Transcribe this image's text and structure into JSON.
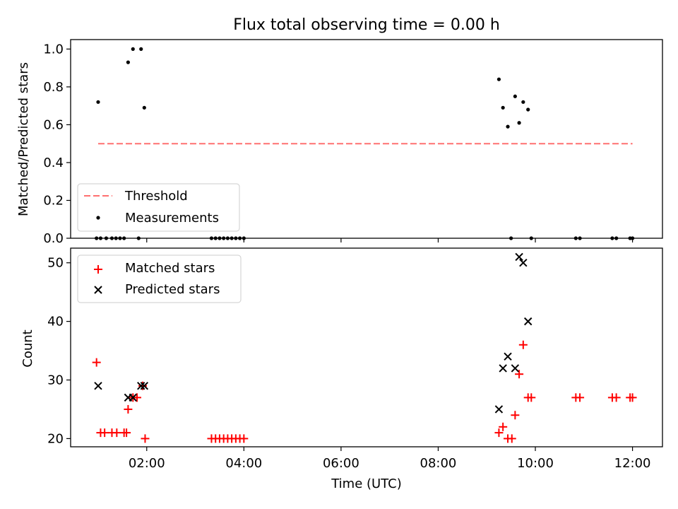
{
  "chart_data": [
    {
      "type": "scatter",
      "title": "Flux total observing time = 0.00 h",
      "xlabel": "",
      "ylabel": "Matched/Predicted stars",
      "xlim": [
        "00:26",
        "12:37"
      ],
      "ylim": [
        0.0,
        1.05
      ],
      "yticks": [
        "0.0",
        "0.2",
        "0.4",
        "0.6",
        "0.8",
        "1.0"
      ],
      "x_tick_labels_visible": false,
      "legend_position": "lower-left",
      "series": [
        {
          "name": "Threshold",
          "kind": "dashed-line",
          "color": "#ff7070",
          "points": [
            [
              "01:00",
              0.5
            ],
            [
              "12:00",
              0.5
            ]
          ]
        },
        {
          "name": "Measurements",
          "kind": "dot",
          "color": "#000000",
          "points": [
            [
              "01:00",
              0.72
            ],
            [
              "01:37",
              0.93
            ],
            [
              "01:43",
              1.0
            ],
            [
              "01:53",
              1.0
            ],
            [
              "01:57",
              0.69
            ],
            [
              "09:15",
              0.84
            ],
            [
              "09:20",
              0.69
            ],
            [
              "09:26",
              0.59
            ],
            [
              "09:35",
              0.75
            ],
            [
              "09:40",
              0.61
            ],
            [
              "09:45",
              0.72
            ],
            [
              "09:51",
              0.68
            ],
            [
              "00:58",
              0.0
            ],
            [
              "01:03",
              0.0
            ],
            [
              "01:10",
              0.0
            ],
            [
              "01:17",
              0.0
            ],
            [
              "01:22",
              0.0
            ],
            [
              "01:27",
              0.0
            ],
            [
              "01:32",
              0.0
            ],
            [
              "01:50",
              0.0
            ],
            [
              "03:20",
              0.0
            ],
            [
              "03:25",
              0.0
            ],
            [
              "03:30",
              0.0
            ],
            [
              "03:35",
              0.0
            ],
            [
              "03:40",
              0.0
            ],
            [
              "03:45",
              0.0
            ],
            [
              "03:50",
              0.0
            ],
            [
              "03:55",
              0.0
            ],
            [
              "04:00",
              0.0
            ],
            [
              "09:30",
              0.0
            ],
            [
              "09:55",
              0.0
            ],
            [
              "10:50",
              0.0
            ],
            [
              "10:55",
              0.0
            ],
            [
              "11:35",
              0.0
            ],
            [
              "11:40",
              0.0
            ],
            [
              "11:57",
              0.0
            ],
            [
              "12:00",
              0.0
            ]
          ]
        }
      ]
    },
    {
      "type": "scatter",
      "title": "",
      "xlabel": "Time (UTC)",
      "ylabel": "Count",
      "xlim": [
        "00:26",
        "12:37"
      ],
      "ylim": [
        18.6,
        52.5
      ],
      "yticks": [
        "20",
        "30",
        "40",
        "50"
      ],
      "xticks": [
        "02:00",
        "04:00",
        "06:00",
        "08:00",
        "10:00",
        "12:00"
      ],
      "legend_position": "upper-left",
      "series": [
        {
          "name": "Matched stars",
          "kind": "plus",
          "color": "#ff0000",
          "points": [
            [
              "00:58",
              33
            ],
            [
              "01:03",
              21
            ],
            [
              "01:08",
              21
            ],
            [
              "01:17",
              21
            ],
            [
              "01:23",
              21
            ],
            [
              "01:32",
              21
            ],
            [
              "01:35",
              21
            ],
            [
              "01:37",
              25
            ],
            [
              "01:43",
              27
            ],
            [
              "01:48",
              27
            ],
            [
              "01:55",
              29
            ],
            [
              "01:58",
              20
            ],
            [
              "03:20",
              20
            ],
            [
              "03:25",
              20
            ],
            [
              "03:30",
              20
            ],
            [
              "03:35",
              20
            ],
            [
              "03:40",
              20
            ],
            [
              "03:45",
              20
            ],
            [
              "03:50",
              20
            ],
            [
              "03:55",
              20
            ],
            [
              "04:00",
              20
            ],
            [
              "09:15",
              21
            ],
            [
              "09:20",
              22
            ],
            [
              "09:26",
              20
            ],
            [
              "09:31",
              20
            ],
            [
              "09:35",
              24
            ],
            [
              "09:40",
              31
            ],
            [
              "09:45",
              36
            ],
            [
              "09:51",
              27
            ],
            [
              "09:55",
              27
            ],
            [
              "10:50",
              27
            ],
            [
              "10:55",
              27
            ],
            [
              "11:35",
              27
            ],
            [
              "11:40",
              27
            ],
            [
              "11:57",
              27
            ],
            [
              "12:00",
              27
            ]
          ]
        },
        {
          "name": "Predicted stars",
          "kind": "x",
          "color": "#000000",
          "points": [
            [
              "01:00",
              29
            ],
            [
              "01:37",
              27
            ],
            [
              "01:43",
              27
            ],
            [
              "01:53",
              29
            ],
            [
              "01:57",
              29
            ],
            [
              "09:15",
              25
            ],
            [
              "09:20",
              32
            ],
            [
              "09:26",
              34
            ],
            [
              "09:35",
              32
            ],
            [
              "09:40",
              51
            ],
            [
              "09:45",
              50
            ],
            [
              "09:51",
              40
            ]
          ]
        }
      ]
    }
  ]
}
